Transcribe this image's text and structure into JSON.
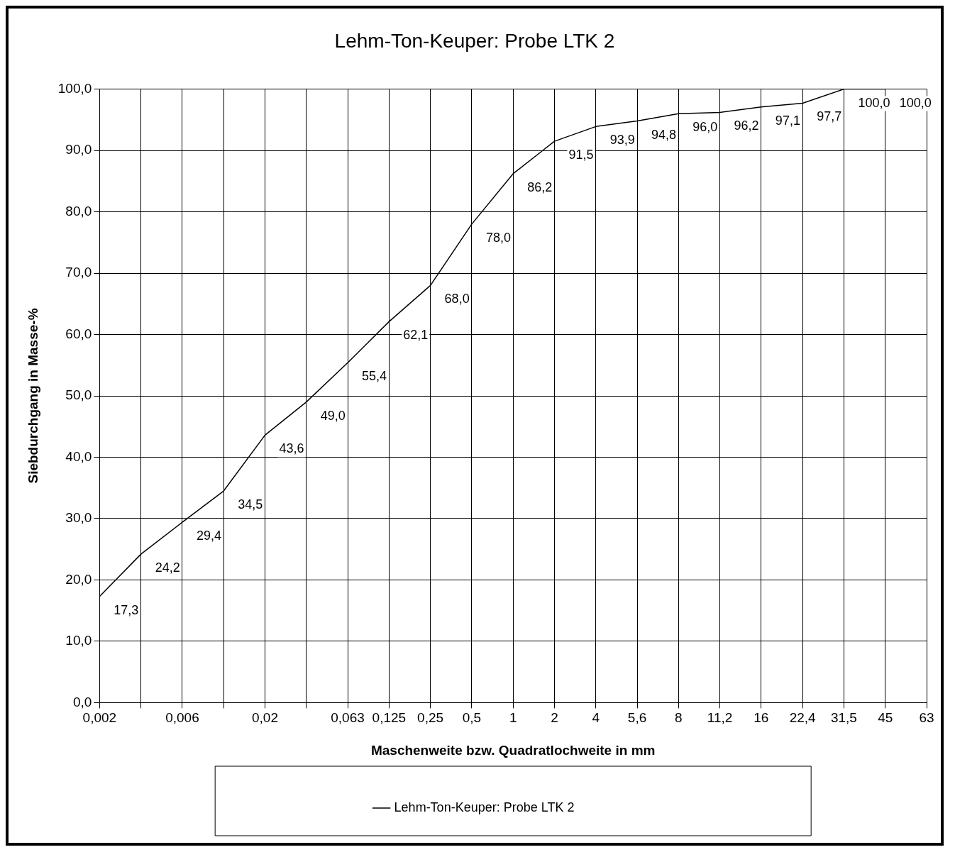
{
  "chart_data": {
    "type": "line",
    "title": "Lehm-Ton-Keuper: Probe LTK 2",
    "xlabel": "Maschenweite bzw. Quadratlochweite in mm",
    "ylabel": "Siebdurchgang in Masse-%",
    "categories": [
      "0,002",
      null,
      "0,006",
      null,
      "0,02",
      null,
      "0,063",
      "0,125",
      "0,25",
      "0,5",
      "1",
      "2",
      "4",
      "5,6",
      "8",
      "11,2",
      "16",
      "22,4",
      "31,5",
      "45",
      "63"
    ],
    "series": [
      {
        "name": "Lehm-Ton-Keuper: Probe LTK 2",
        "color": "#000000",
        "values": [
          17.3,
          24.2,
          29.4,
          34.5,
          43.6,
          49.0,
          55.4,
          62.1,
          68.0,
          78.0,
          86.2,
          91.5,
          93.9,
          94.8,
          96.0,
          96.2,
          97.1,
          97.7,
          100.0,
          100.0,
          null
        ],
        "value_labels": [
          "17,3",
          "24,2",
          "29,4",
          "34,5",
          "43,6",
          "49,0",
          "55,4",
          "62,1",
          "68,0",
          "78,0",
          "86,2",
          "91,5",
          "93,9",
          "94,8",
          "96,0",
          "96,2",
          "97,1",
          "97,7",
          "100,0",
          "100,0",
          null
        ]
      }
    ],
    "ylim": [
      0,
      100
    ],
    "yticks": [
      {
        "value": 0,
        "label": "0,0"
      },
      {
        "value": 10,
        "label": "10,0"
      },
      {
        "value": 20,
        "label": "20,0"
      },
      {
        "value": 30,
        "label": "30,0"
      },
      {
        "value": 40,
        "label": "40,0"
      },
      {
        "value": 50,
        "label": "50,0"
      },
      {
        "value": 60,
        "label": "60,0"
      },
      {
        "value": 70,
        "label": "70,0"
      },
      {
        "value": 80,
        "label": "80,0"
      },
      {
        "value": 90,
        "label": "90,0"
      },
      {
        "value": 100,
        "label": "100,0"
      }
    ],
    "grid": true,
    "legend": "bottom",
    "marker": "none",
    "line_style": "solid"
  }
}
